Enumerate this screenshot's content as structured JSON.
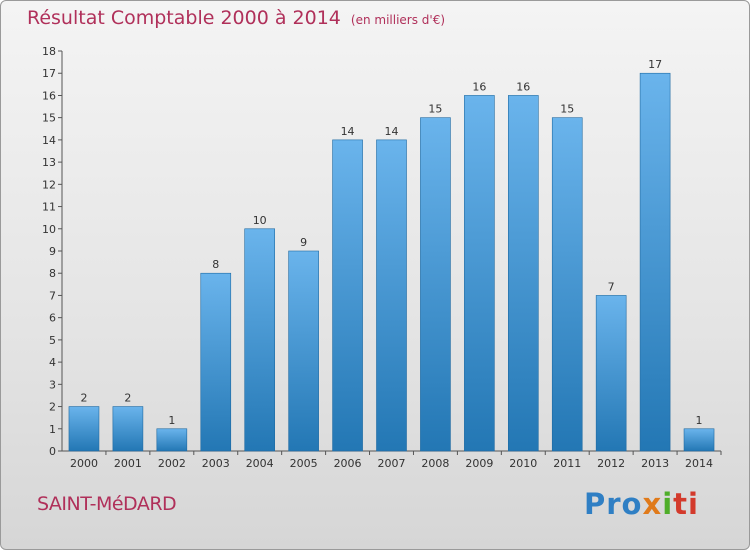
{
  "header": {
    "title": "Résultat Comptable 2000 à 2014",
    "unit": "(en milliers d'€)"
  },
  "footer": {
    "town": "SAINT-MéDARD",
    "logo_parts": [
      "Pro",
      "x",
      "i",
      "ti"
    ]
  },
  "colors": {
    "bar_top": "#6ab4ec",
    "bar_bottom": "#2377b4",
    "title": "#b0305a"
  },
  "chart_data": {
    "type": "bar",
    "title": "Résultat Comptable 2000 à 2014",
    "subtitle": "(en milliers d'€)",
    "xlabel": "",
    "ylabel": "",
    "categories": [
      "2000",
      "2001",
      "2002",
      "2003",
      "2004",
      "2005",
      "2006",
      "2007",
      "2008",
      "2009",
      "2010",
      "2011",
      "2012",
      "2013",
      "2014"
    ],
    "values": [
      2,
      2,
      1,
      8,
      10,
      9,
      14,
      14,
      15,
      16,
      16,
      15,
      7,
      17,
      1
    ],
    "ylim": [
      0,
      18
    ],
    "yticks": [
      "0",
      "1",
      "2",
      "3",
      "4",
      "5",
      "6",
      "7",
      "8",
      "9",
      "10",
      "11",
      "12",
      "13",
      "14",
      "15",
      "16",
      "17",
      "18"
    ],
    "grid": false,
    "legend": "none"
  }
}
